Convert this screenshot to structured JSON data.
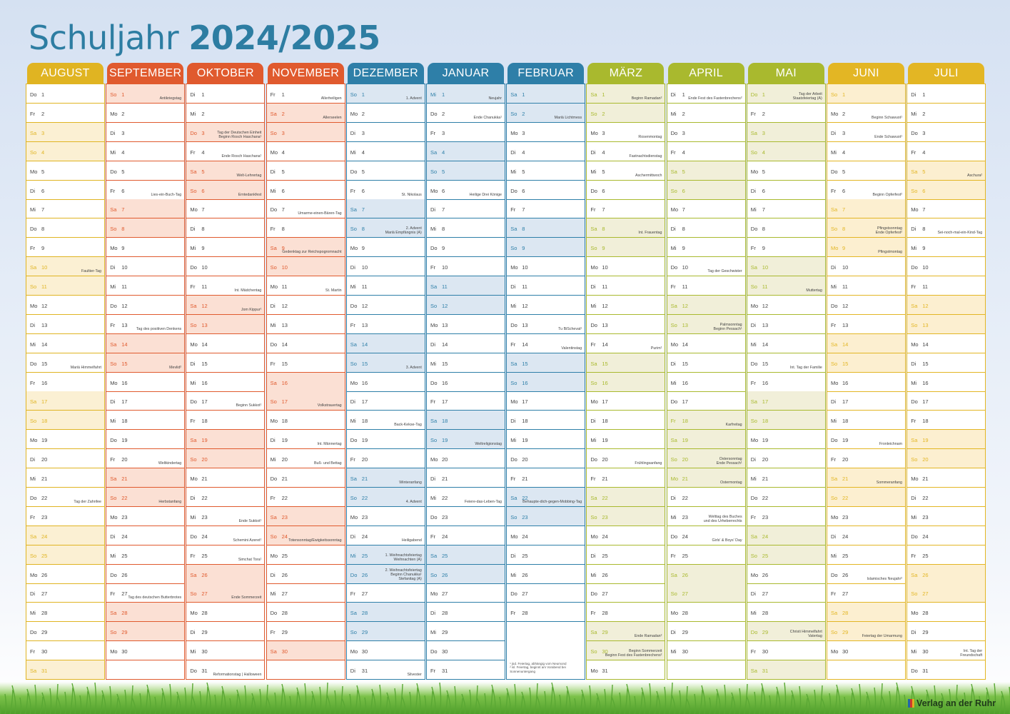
{
  "title": {
    "word": "Schuljahr",
    "years": "2024/2025",
    "color": "#2d7da2"
  },
  "weekdays": [
    "Mo",
    "Di",
    "Mi",
    "Do",
    "Fr",
    "Sa",
    "So"
  ],
  "months": [
    {
      "name": "AUGUST",
      "days": 31,
      "first_weekday": 3,
      "accent": "#e0b422",
      "shade": "#fbf0d3",
      "holidays": [],
      "events": {
        "10": "Faultier-Tag",
        "15": "Mariä Himmelfahrt",
        "22": "Tag der Zahnfee"
      }
    },
    {
      "name": "SEPTEMBER",
      "days": 30,
      "first_weekday": 6,
      "accent": "#e05a2e",
      "shade": "#fbe0d4",
      "holidays": [],
      "events": {
        "1": "Antikriegstag",
        "6": "Lies-ein-Buch-Tag",
        "13": "Tag des positiven Denkens",
        "15": "Mevlid²",
        "20": "Weltkindertag",
        "22": "Herbstanfang",
        "27": "Tag des deutschen Butterbrotes"
      }
    },
    {
      "name": "OKTOBER",
      "days": 31,
      "first_weekday": 1,
      "accent": "#e05a2e",
      "shade": "#fbe0d4",
      "holidays": [
        3
      ],
      "events": {
        "3": "Tag der Deutschen Einheit\nBeginn Rosch Haschana¹",
        "4": "Ende Rosch Haschana¹",
        "5": "Welt-Lehrertag",
        "6": "Erntedankfest",
        "11": "Int. Mädchentag",
        "12": "Jom Kippur¹",
        "17": "Beginn Sukkot¹",
        "23": "Ende Sukkot¹",
        "24": "Schemini Azeret¹",
        "25": "Simchat Tora¹",
        "27": "Ende Sommerzeit",
        "31": "Reformationstag | Halloween"
      }
    },
    {
      "name": "NOVEMBER",
      "days": 30,
      "first_weekday": 4,
      "accent": "#e05a2e",
      "shade": "#fbe0d4",
      "holidays": [],
      "events": {
        "1": "Allerheiligen",
        "2": "Allerseelen",
        "7": "Umarme-einen-Bären-Tag",
        "9": "Gedenktag zur Reichspogromnacht",
        "11": "St. Martin",
        "17": "Volkstrauertag",
        "19": "Int. Männertag",
        "20": "Buß- und Bettag",
        "24": "Totensonntag/Ewigkeitssonntag"
      }
    },
    {
      "name": "DEZEMBER",
      "days": 31,
      "first_weekday": 6,
      "accent": "#2e7fa8",
      "shade": "#dce7f2",
      "holidays": [
        25,
        26
      ],
      "events": {
        "1": "1. Advent",
        "6": "St. Nikolaus",
        "8": "2. Advent\nMariä Empfängnis (A)",
        "15": "3. Advent",
        "18": "Back-Kekse-Tag",
        "21": "Winteranfang",
        "22": "4. Advent",
        "24": "Heiligabend",
        "25": "1. Weihnachtsfeiertag\nWeihnachten (A)",
        "26": "2. Weihnachtsfeiertag\nBeginn Chanukka¹\nStefanitag (A)",
        "31": "Silvester"
      }
    },
    {
      "name": "JANUAR",
      "days": 31,
      "first_weekday": 2,
      "accent": "#2e7fa8",
      "shade": "#dce7f2",
      "holidays": [
        1
      ],
      "events": {
        "1": "Neujahr",
        "2": "Ende Chanukka¹",
        "6": "Heilige Drei Könige",
        "19": "Weltreligionstag",
        "22": "Feiere-das-Leben-Tag"
      }
    },
    {
      "name": "FEBRUAR",
      "days": 28,
      "first_weekday": 5,
      "accent": "#2e7fa8",
      "shade": "#dce7f2",
      "holidays": [],
      "events": {
        "2": "Mariä Lichtmess",
        "13": "Tu BiSchevat¹",
        "14": "Valentinstag",
        "22": "Behaupte-dich-gegen-Mobbing-Tag"
      },
      "footnote": "¹ jüd. Feiertag, abhängig vom Neumond\n² isl. Feiertag, beginnt am Vorabend bei Sonnenuntergang"
    },
    {
      "name": "MÄRZ",
      "days": 31,
      "first_weekday": 5,
      "accent": "#a9b92e",
      "shade": "#f1efd9",
      "holidays": [],
      "events": {
        "1": "Beginn Ramadan²",
        "3": "Rosenmontag",
        "4": "Fastnachtsdienstag",
        "5": "Aschermittwoch",
        "8": "Int. Frauentag",
        "14": "Purim¹",
        "20": "Frühlingsanfang",
        "29": "Ende Ramadan²",
        "30": "Beginn Sommerzeit\nBeginn Fest des Fastenbrechens²"
      }
    },
    {
      "name": "APRIL",
      "days": 30,
      "first_weekday": 1,
      "accent": "#a9b92e",
      "shade": "#f1efd9",
      "holidays": [
        18,
        21
      ],
      "events": {
        "1": "Ende Fest des Fastenbrechens²",
        "10": "Tag der Geschwister",
        "13": "Palmsonntag\nBeginn Pessach¹",
        "18": "Karfreitag",
        "20": "Ostersonntag\nEnde Pessach¹",
        "21": "Ostermontag",
        "23": "Welttag des Buches\nund des Urheberrechts",
        "24": "Girls' & Boys' Day"
      }
    },
    {
      "name": "MAI",
      "days": 31,
      "first_weekday": 3,
      "accent": "#a9b92e",
      "shade": "#f1efd9",
      "holidays": [
        1,
        29
      ],
      "events": {
        "1": "Tag der Arbeit\nStaatsfeiertag (A)",
        "11": "Muttertag",
        "15": "Int. Tag der Familie",
        "29": "Christi Himmelfahrt\nVatertag"
      }
    },
    {
      "name": "JUNI",
      "days": 30,
      "first_weekday": 6,
      "accent": "#e3b624",
      "shade": "#fcefd0",
      "holidays": [
        9
      ],
      "events": {
        "2": "Beginn Schawuot¹",
        "3": "Ende Schawuot¹",
        "6": "Beginn Opferfest²",
        "8": "Pfingstsonntag\nEnde Opferfest²",
        "9": "Pfingstmontag",
        "19": "Fronleichnam",
        "21": "Sommeranfang",
        "26": "Islamisches Neujahr²",
        "29": "Feiertag der Umarmung"
      }
    },
    {
      "name": "JULI",
      "days": 31,
      "first_weekday": 1,
      "accent": "#e3b624",
      "shade": "#fcefd0",
      "holidays": [],
      "events": {
        "5": "Aschura²",
        "8": "Sei-noch-mal-ein-Kind-Tag",
        "30": "Int. Tag der\nFreundschaft"
      }
    }
  ],
  "publisher": {
    "name": "Verlag an der Ruhr"
  }
}
